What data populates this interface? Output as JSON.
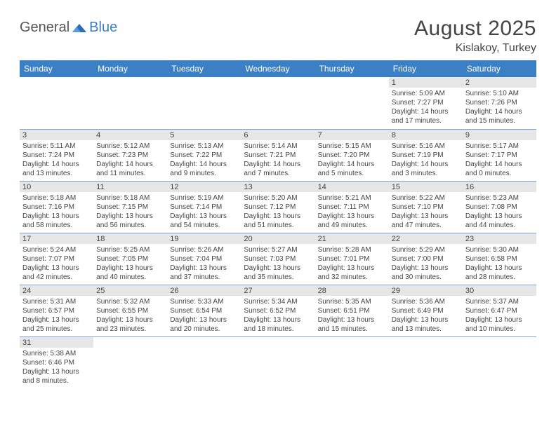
{
  "logo": {
    "part1": "General",
    "part2": "Blue"
  },
  "title": "August 2025",
  "location": "Kislakoy, Turkey",
  "weekdays": [
    "Sunday",
    "Monday",
    "Tuesday",
    "Wednesday",
    "Thursday",
    "Friday",
    "Saturday"
  ],
  "colors": {
    "header_bg": "#3b7fc4",
    "header_text": "#ffffff",
    "daynum_bg": "#e6e6e6",
    "border": "#7aa5d4",
    "text": "#444444"
  },
  "weeks": [
    [
      {
        "day": "",
        "sunrise": "",
        "sunset": "",
        "daylight1": "",
        "daylight2": ""
      },
      {
        "day": "",
        "sunrise": "",
        "sunset": "",
        "daylight1": "",
        "daylight2": ""
      },
      {
        "day": "",
        "sunrise": "",
        "sunset": "",
        "daylight1": "",
        "daylight2": ""
      },
      {
        "day": "",
        "sunrise": "",
        "sunset": "",
        "daylight1": "",
        "daylight2": ""
      },
      {
        "day": "",
        "sunrise": "",
        "sunset": "",
        "daylight1": "",
        "daylight2": ""
      },
      {
        "day": "1",
        "sunrise": "Sunrise: 5:09 AM",
        "sunset": "Sunset: 7:27 PM",
        "daylight1": "Daylight: 14 hours",
        "daylight2": "and 17 minutes."
      },
      {
        "day": "2",
        "sunrise": "Sunrise: 5:10 AM",
        "sunset": "Sunset: 7:26 PM",
        "daylight1": "Daylight: 14 hours",
        "daylight2": "and 15 minutes."
      }
    ],
    [
      {
        "day": "3",
        "sunrise": "Sunrise: 5:11 AM",
        "sunset": "Sunset: 7:24 PM",
        "daylight1": "Daylight: 14 hours",
        "daylight2": "and 13 minutes."
      },
      {
        "day": "4",
        "sunrise": "Sunrise: 5:12 AM",
        "sunset": "Sunset: 7:23 PM",
        "daylight1": "Daylight: 14 hours",
        "daylight2": "and 11 minutes."
      },
      {
        "day": "5",
        "sunrise": "Sunrise: 5:13 AM",
        "sunset": "Sunset: 7:22 PM",
        "daylight1": "Daylight: 14 hours",
        "daylight2": "and 9 minutes."
      },
      {
        "day": "6",
        "sunrise": "Sunrise: 5:14 AM",
        "sunset": "Sunset: 7:21 PM",
        "daylight1": "Daylight: 14 hours",
        "daylight2": "and 7 minutes."
      },
      {
        "day": "7",
        "sunrise": "Sunrise: 5:15 AM",
        "sunset": "Sunset: 7:20 PM",
        "daylight1": "Daylight: 14 hours",
        "daylight2": "and 5 minutes."
      },
      {
        "day": "8",
        "sunrise": "Sunrise: 5:16 AM",
        "sunset": "Sunset: 7:19 PM",
        "daylight1": "Daylight: 14 hours",
        "daylight2": "and 3 minutes."
      },
      {
        "day": "9",
        "sunrise": "Sunrise: 5:17 AM",
        "sunset": "Sunset: 7:17 PM",
        "daylight1": "Daylight: 14 hours",
        "daylight2": "and 0 minutes."
      }
    ],
    [
      {
        "day": "10",
        "sunrise": "Sunrise: 5:18 AM",
        "sunset": "Sunset: 7:16 PM",
        "daylight1": "Daylight: 13 hours",
        "daylight2": "and 58 minutes."
      },
      {
        "day": "11",
        "sunrise": "Sunrise: 5:18 AM",
        "sunset": "Sunset: 7:15 PM",
        "daylight1": "Daylight: 13 hours",
        "daylight2": "and 56 minutes."
      },
      {
        "day": "12",
        "sunrise": "Sunrise: 5:19 AM",
        "sunset": "Sunset: 7:14 PM",
        "daylight1": "Daylight: 13 hours",
        "daylight2": "and 54 minutes."
      },
      {
        "day": "13",
        "sunrise": "Sunrise: 5:20 AM",
        "sunset": "Sunset: 7:12 PM",
        "daylight1": "Daylight: 13 hours",
        "daylight2": "and 51 minutes."
      },
      {
        "day": "14",
        "sunrise": "Sunrise: 5:21 AM",
        "sunset": "Sunset: 7:11 PM",
        "daylight1": "Daylight: 13 hours",
        "daylight2": "and 49 minutes."
      },
      {
        "day": "15",
        "sunrise": "Sunrise: 5:22 AM",
        "sunset": "Sunset: 7:10 PM",
        "daylight1": "Daylight: 13 hours",
        "daylight2": "and 47 minutes."
      },
      {
        "day": "16",
        "sunrise": "Sunrise: 5:23 AM",
        "sunset": "Sunset: 7:08 PM",
        "daylight1": "Daylight: 13 hours",
        "daylight2": "and 44 minutes."
      }
    ],
    [
      {
        "day": "17",
        "sunrise": "Sunrise: 5:24 AM",
        "sunset": "Sunset: 7:07 PM",
        "daylight1": "Daylight: 13 hours",
        "daylight2": "and 42 minutes."
      },
      {
        "day": "18",
        "sunrise": "Sunrise: 5:25 AM",
        "sunset": "Sunset: 7:05 PM",
        "daylight1": "Daylight: 13 hours",
        "daylight2": "and 40 minutes."
      },
      {
        "day": "19",
        "sunrise": "Sunrise: 5:26 AM",
        "sunset": "Sunset: 7:04 PM",
        "daylight1": "Daylight: 13 hours",
        "daylight2": "and 37 minutes."
      },
      {
        "day": "20",
        "sunrise": "Sunrise: 5:27 AM",
        "sunset": "Sunset: 7:03 PM",
        "daylight1": "Daylight: 13 hours",
        "daylight2": "and 35 minutes."
      },
      {
        "day": "21",
        "sunrise": "Sunrise: 5:28 AM",
        "sunset": "Sunset: 7:01 PM",
        "daylight1": "Daylight: 13 hours",
        "daylight2": "and 32 minutes."
      },
      {
        "day": "22",
        "sunrise": "Sunrise: 5:29 AM",
        "sunset": "Sunset: 7:00 PM",
        "daylight1": "Daylight: 13 hours",
        "daylight2": "and 30 minutes."
      },
      {
        "day": "23",
        "sunrise": "Sunrise: 5:30 AM",
        "sunset": "Sunset: 6:58 PM",
        "daylight1": "Daylight: 13 hours",
        "daylight2": "and 28 minutes."
      }
    ],
    [
      {
        "day": "24",
        "sunrise": "Sunrise: 5:31 AM",
        "sunset": "Sunset: 6:57 PM",
        "daylight1": "Daylight: 13 hours",
        "daylight2": "and 25 minutes."
      },
      {
        "day": "25",
        "sunrise": "Sunrise: 5:32 AM",
        "sunset": "Sunset: 6:55 PM",
        "daylight1": "Daylight: 13 hours",
        "daylight2": "and 23 minutes."
      },
      {
        "day": "26",
        "sunrise": "Sunrise: 5:33 AM",
        "sunset": "Sunset: 6:54 PM",
        "daylight1": "Daylight: 13 hours",
        "daylight2": "and 20 minutes."
      },
      {
        "day": "27",
        "sunrise": "Sunrise: 5:34 AM",
        "sunset": "Sunset: 6:52 PM",
        "daylight1": "Daylight: 13 hours",
        "daylight2": "and 18 minutes."
      },
      {
        "day": "28",
        "sunrise": "Sunrise: 5:35 AM",
        "sunset": "Sunset: 6:51 PM",
        "daylight1": "Daylight: 13 hours",
        "daylight2": "and 15 minutes."
      },
      {
        "day": "29",
        "sunrise": "Sunrise: 5:36 AM",
        "sunset": "Sunset: 6:49 PM",
        "daylight1": "Daylight: 13 hours",
        "daylight2": "and 13 minutes."
      },
      {
        "day": "30",
        "sunrise": "Sunrise: 5:37 AM",
        "sunset": "Sunset: 6:47 PM",
        "daylight1": "Daylight: 13 hours",
        "daylight2": "and 10 minutes."
      }
    ],
    [
      {
        "day": "31",
        "sunrise": "Sunrise: 5:38 AM",
        "sunset": "Sunset: 6:46 PM",
        "daylight1": "Daylight: 13 hours",
        "daylight2": "and 8 minutes."
      },
      {
        "day": "",
        "sunrise": "",
        "sunset": "",
        "daylight1": "",
        "daylight2": ""
      },
      {
        "day": "",
        "sunrise": "",
        "sunset": "",
        "daylight1": "",
        "daylight2": ""
      },
      {
        "day": "",
        "sunrise": "",
        "sunset": "",
        "daylight1": "",
        "daylight2": ""
      },
      {
        "day": "",
        "sunrise": "",
        "sunset": "",
        "daylight1": "",
        "daylight2": ""
      },
      {
        "day": "",
        "sunrise": "",
        "sunset": "",
        "daylight1": "",
        "daylight2": ""
      },
      {
        "day": "",
        "sunrise": "",
        "sunset": "",
        "daylight1": "",
        "daylight2": ""
      }
    ]
  ]
}
